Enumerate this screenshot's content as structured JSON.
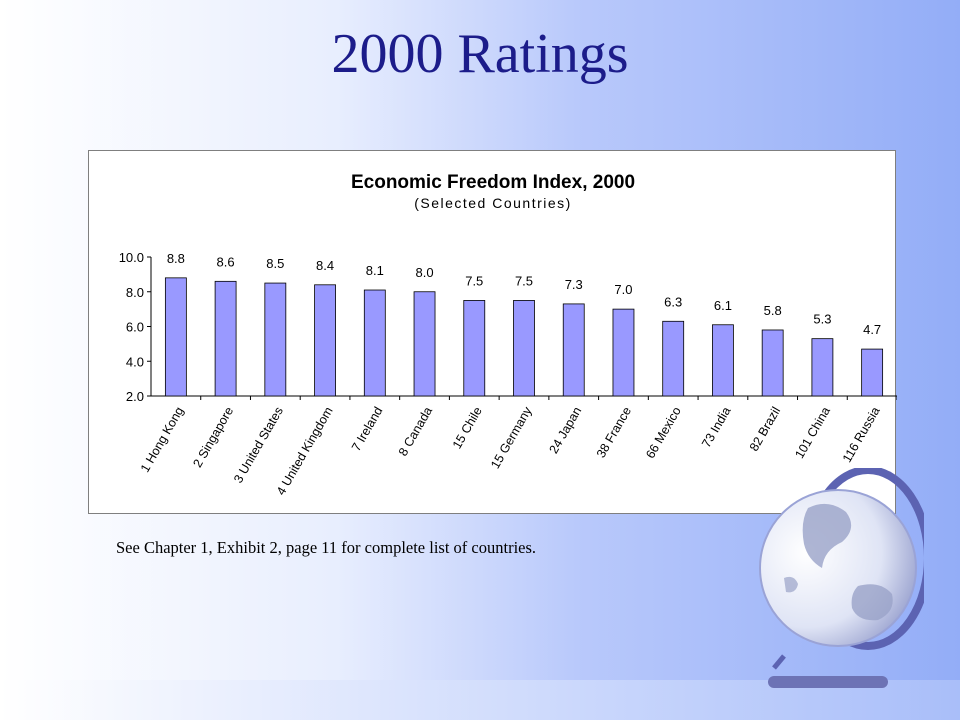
{
  "slide": {
    "title": "2000 Ratings",
    "footnote": "See Chapter 1, Exhibit 2, page 11 for complete list of countries."
  },
  "colors": {
    "title": "#1c1c8a",
    "bar_fill": "#9999ff",
    "bar_stroke": "#000000"
  },
  "chart_data": {
    "type": "bar",
    "title": "Economic Freedom Index, 2000",
    "subtitle": "(Selected Countries)",
    "categories": [
      "1 Hong Kong",
      "2 Singapore",
      "3 United States",
      "4 United Kingdom",
      "7 Ireland",
      "8 Canada",
      "15 Chile",
      "15 Germany",
      "24 Japan",
      "38 France",
      "66 Mexico",
      "73 India",
      "82 Brazil",
      "101 China",
      "116 Russia"
    ],
    "values": [
      8.8,
      8.6,
      8.5,
      8.4,
      8.1,
      8.0,
      7.5,
      7.5,
      7.3,
      7.0,
      6.3,
      6.1,
      5.8,
      5.3,
      4.7
    ],
    "value_labels": [
      "8.8",
      "8.6",
      "8.5",
      "8.4",
      "8.1",
      "8.0",
      "7.5",
      "7.5",
      "7.3",
      "7.0",
      "6.3",
      "6.1",
      "5.8",
      "5.3",
      "4.7"
    ],
    "ylim": [
      2.0,
      10.0
    ],
    "yticks": [
      "2.0",
      "4.0",
      "6.0",
      "8.0",
      "10.0"
    ],
    "ytick_values": [
      2,
      4,
      6,
      8,
      10
    ],
    "xlabel": "",
    "ylabel": "",
    "grid": false,
    "legend": "none"
  }
}
